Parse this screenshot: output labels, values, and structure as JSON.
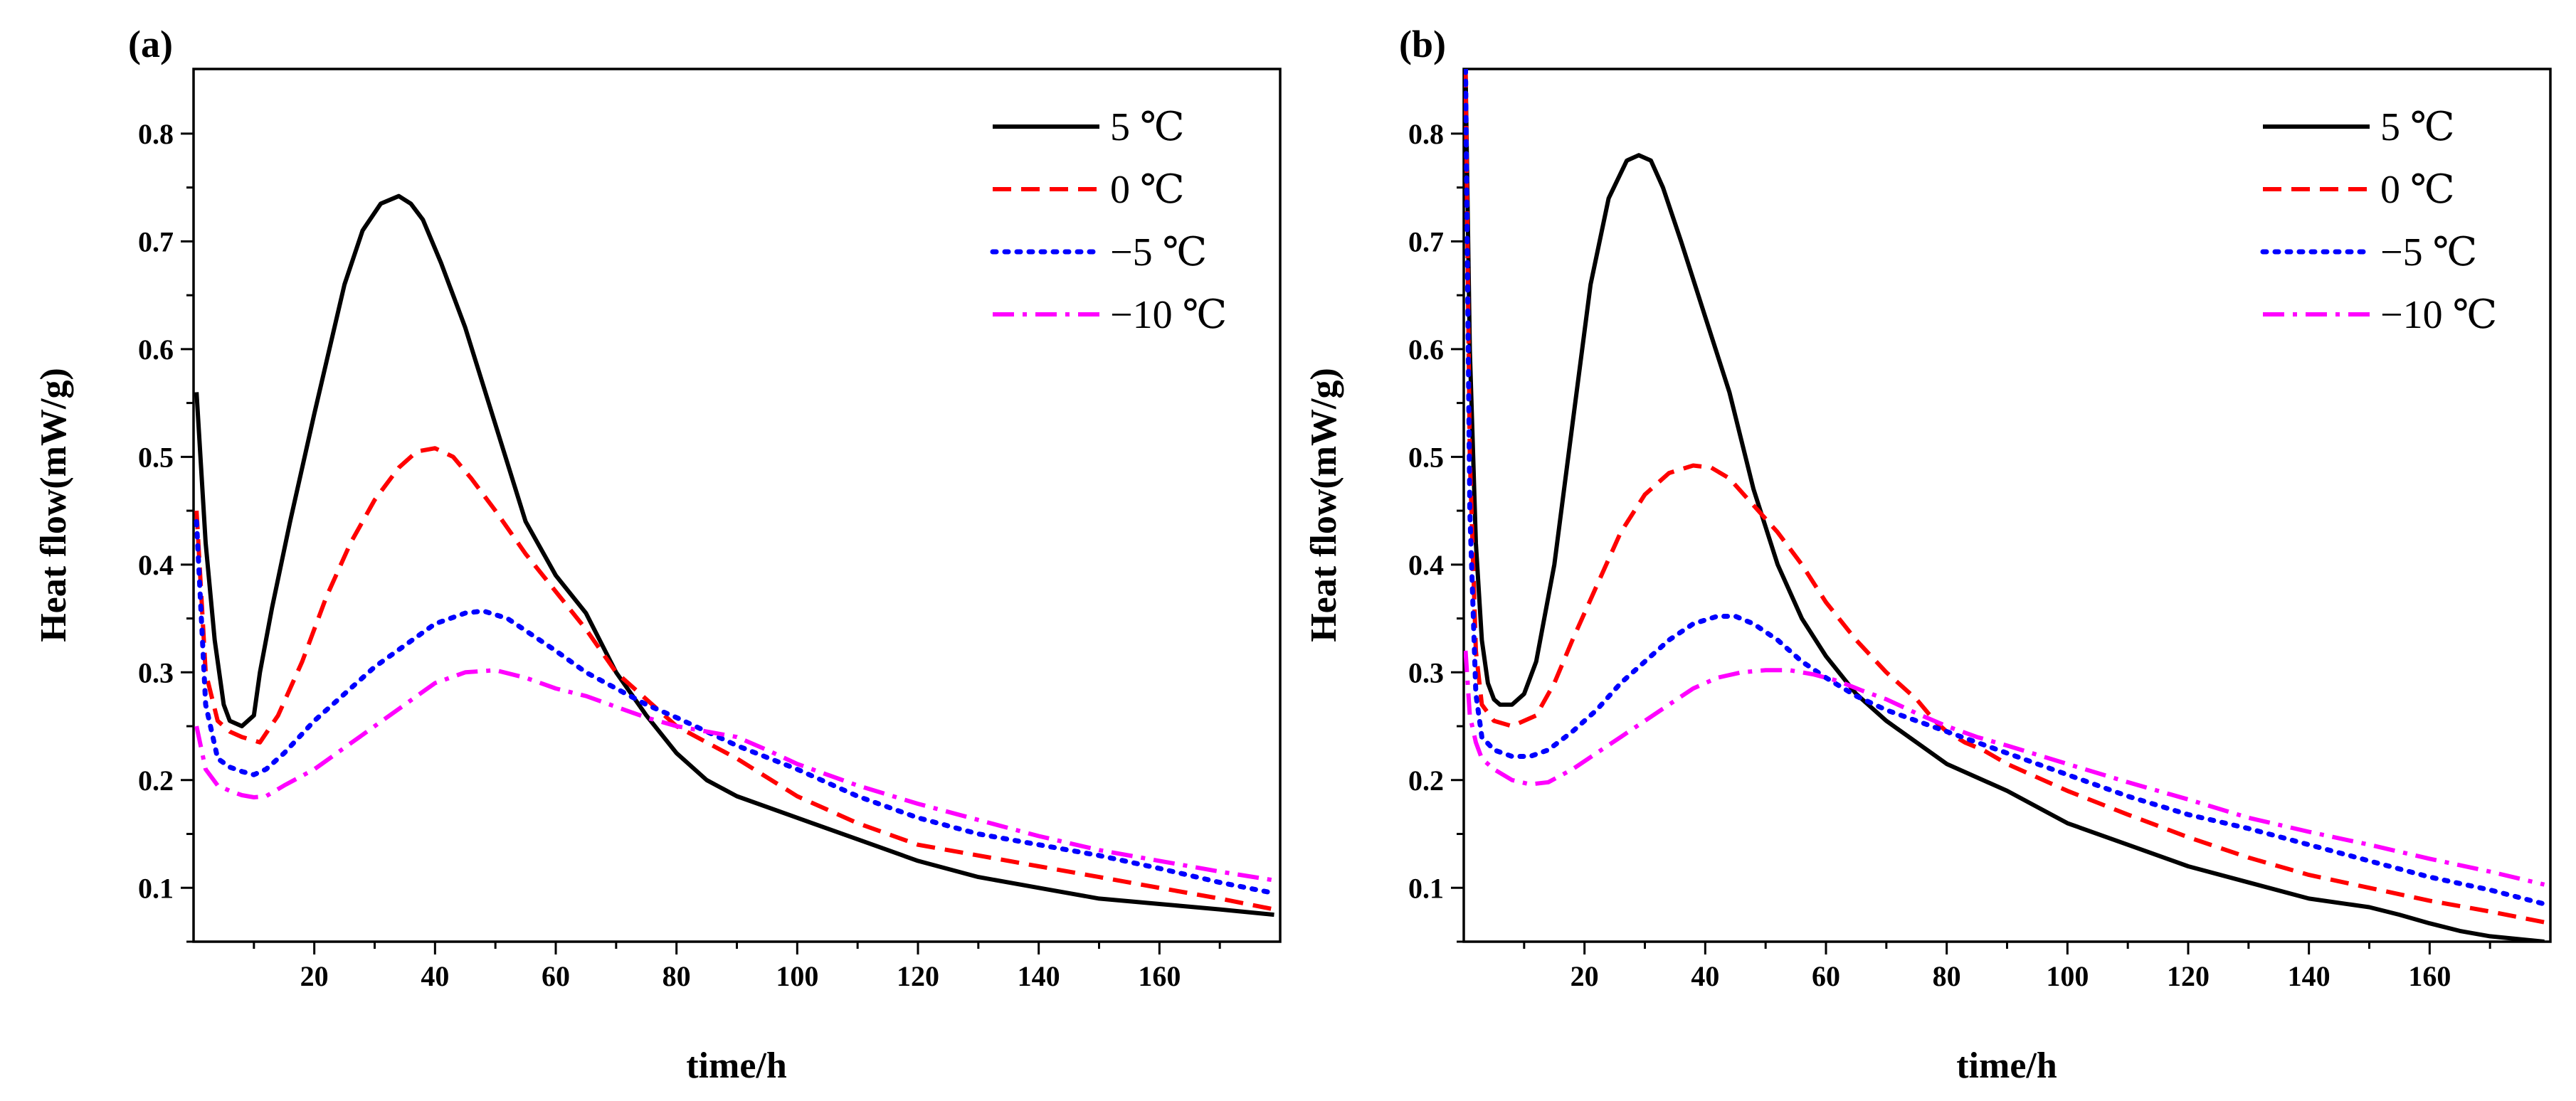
{
  "colors": {
    "5C": "#000000",
    "0C": "#ff0000",
    "m5C": "#0000ff",
    "m10C": "#ff00ff"
  },
  "chart_data": [
    {
      "panel_label": "(a)",
      "type": "line",
      "xlabel": "time/h",
      "ylabel": "Heat flow(mW/g)",
      "xlim": [
        0,
        180
      ],
      "ylim": [
        0.05,
        0.86
      ],
      "xticks": [
        "20",
        "40",
        "60",
        "80",
        "100",
        "120",
        "140",
        "160"
      ],
      "yticks": [
        "0.1",
        "0.2",
        "0.3",
        "0.4",
        "0.5",
        "0.6",
        "0.7",
        "0.8"
      ],
      "legend": [
        "5 ℃",
        "0 ℃",
        "−5 ℃",
        "−10 ℃"
      ],
      "series": [
        {
          "name": "5 ℃",
          "style": "solid",
          "color_key": "5C",
          "x": [
            0.5,
            2,
            3.5,
            5,
            6,
            8,
            10,
            11,
            13,
            16,
            20,
            25,
            28,
            31,
            34,
            36,
            38,
            41,
            45,
            50,
            55,
            60,
            65,
            70,
            75,
            80,
            85,
            90,
            100,
            110,
            120,
            130,
            140,
            150,
            160,
            170,
            179
          ],
          "y": [
            0.56,
            0.42,
            0.33,
            0.27,
            0.255,
            0.25,
            0.26,
            0.3,
            0.36,
            0.44,
            0.54,
            0.66,
            0.71,
            0.735,
            0.742,
            0.735,
            0.72,
            0.68,
            0.62,
            0.53,
            0.44,
            0.39,
            0.355,
            0.3,
            0.26,
            0.225,
            0.2,
            0.185,
            0.165,
            0.145,
            0.125,
            0.11,
            0.1,
            0.09,
            0.085,
            0.08,
            0.075
          ]
        },
        {
          "name": "0 ℃",
          "style": "dashed",
          "color_key": "0C",
          "x": [
            0.5,
            2,
            4,
            6,
            8,
            11,
            14,
            18,
            22,
            26,
            30,
            34,
            37,
            40,
            43,
            46,
            50,
            55,
            60,
            65,
            70,
            75,
            80,
            85,
            90,
            100,
            110,
            120,
            130,
            140,
            150,
            160,
            170,
            179
          ],
          "y": [
            0.45,
            0.3,
            0.255,
            0.245,
            0.24,
            0.235,
            0.26,
            0.31,
            0.37,
            0.42,
            0.46,
            0.49,
            0.505,
            0.508,
            0.5,
            0.48,
            0.45,
            0.41,
            0.375,
            0.34,
            0.3,
            0.275,
            0.25,
            0.235,
            0.22,
            0.185,
            0.16,
            0.14,
            0.13,
            0.12,
            0.11,
            0.1,
            0.09,
            0.08
          ]
        },
        {
          "name": "−5 ℃",
          "style": "dotted",
          "color_key": "m5C",
          "x": [
            0.5,
            2,
            4,
            6,
            8,
            10,
            12,
            15,
            20,
            25,
            30,
            35,
            40,
            45,
            48,
            52,
            56,
            60,
            65,
            70,
            75,
            80,
            85,
            90,
            100,
            110,
            120,
            130,
            140,
            150,
            160,
            170,
            179
          ],
          "y": [
            0.44,
            0.27,
            0.22,
            0.212,
            0.208,
            0.205,
            0.21,
            0.225,
            0.255,
            0.28,
            0.305,
            0.325,
            0.345,
            0.355,
            0.357,
            0.35,
            0.335,
            0.32,
            0.3,
            0.285,
            0.27,
            0.258,
            0.245,
            0.232,
            0.21,
            0.185,
            0.165,
            0.15,
            0.14,
            0.13,
            0.118,
            0.105,
            0.095
          ]
        },
        {
          "name": "−10 ℃",
          "style": "dashdot",
          "color_key": "m10C",
          "x": [
            0.5,
            2,
            4,
            6,
            8,
            10,
            12,
            15,
            20,
            25,
            30,
            35,
            40,
            45,
            50,
            55,
            60,
            65,
            70,
            75,
            80,
            85,
            90,
            95,
            100,
            110,
            120,
            130,
            140,
            150,
            160,
            170,
            179
          ],
          "y": [
            0.25,
            0.21,
            0.195,
            0.19,
            0.186,
            0.184,
            0.185,
            0.195,
            0.21,
            0.23,
            0.25,
            0.27,
            0.29,
            0.3,
            0.302,
            0.295,
            0.285,
            0.278,
            0.268,
            0.258,
            0.25,
            0.245,
            0.24,
            0.228,
            0.215,
            0.195,
            0.178,
            0.163,
            0.148,
            0.135,
            0.125,
            0.115,
            0.107
          ]
        }
      ]
    },
    {
      "panel_label": "(b)",
      "type": "line",
      "xlabel": "time/h",
      "ylabel": "Heat flow(mW/g)",
      "xlim": [
        0,
        180
      ],
      "ylim": [
        0.05,
        0.86
      ],
      "xticks": [
        "20",
        "40",
        "60",
        "80",
        "100",
        "120",
        "140",
        "160"
      ],
      "yticks": [
        "0.1",
        "0.2",
        "0.3",
        "0.4",
        "0.5",
        "0.6",
        "0.7",
        "0.8"
      ],
      "legend": [
        "5 ℃",
        "0 ℃",
        "−5 ℃",
        "−10 ℃"
      ],
      "series": [
        {
          "name": "5 ℃",
          "style": "solid",
          "color_key": "5C",
          "x": [
            0.3,
            1,
            2,
            3,
            4,
            5,
            6,
            8,
            10,
            12,
            15,
            18,
            21,
            24,
            27,
            29,
            31,
            33,
            36,
            40,
            44,
            48,
            52,
            56,
            60,
            65,
            70,
            75,
            80,
            90,
            100,
            110,
            120,
            130,
            140,
            150,
            155,
            160,
            165,
            170,
            179
          ],
          "y": [
            0.86,
            0.6,
            0.42,
            0.33,
            0.29,
            0.275,
            0.27,
            0.27,
            0.28,
            0.31,
            0.4,
            0.53,
            0.66,
            0.74,
            0.775,
            0.78,
            0.775,
            0.75,
            0.7,
            0.63,
            0.56,
            0.47,
            0.4,
            0.35,
            0.315,
            0.28,
            0.255,
            0.235,
            0.215,
            0.19,
            0.16,
            0.14,
            0.12,
            0.105,
            0.09,
            0.082,
            0.075,
            0.067,
            0.06,
            0.055,
            0.05
          ]
        },
        {
          "name": "0 ℃",
          "style": "dashed",
          "color_key": "0C",
          "x": [
            0.3,
            1,
            2,
            3,
            5,
            8,
            12,
            15,
            18,
            22,
            26,
            30,
            34,
            38,
            41,
            44,
            48,
            52,
            56,
            60,
            65,
            70,
            75,
            78,
            80,
            83,
            86,
            90,
            100,
            110,
            120,
            130,
            140,
            150,
            160,
            170,
            179
          ],
          "y": [
            0.86,
            0.5,
            0.32,
            0.27,
            0.255,
            0.25,
            0.26,
            0.29,
            0.33,
            0.38,
            0.43,
            0.465,
            0.485,
            0.492,
            0.49,
            0.48,
            0.455,
            0.43,
            0.4,
            0.365,
            0.33,
            0.3,
            0.275,
            0.255,
            0.245,
            0.235,
            0.228,
            0.215,
            0.19,
            0.168,
            0.147,
            0.128,
            0.112,
            0.1,
            0.088,
            0.078,
            0.068
          ]
        },
        {
          "name": "−5 ℃",
          "style": "dotted",
          "color_key": "m5C",
          "x": [
            0.3,
            1,
            2,
            3,
            5,
            8,
            11,
            14,
            18,
            22,
            26,
            30,
            34,
            38,
            42,
            45,
            48,
            52,
            56,
            60,
            65,
            70,
            75,
            80,
            90,
            100,
            110,
            120,
            130,
            140,
            150,
            160,
            170,
            179
          ],
          "y": [
            0.86,
            0.45,
            0.28,
            0.24,
            0.228,
            0.222,
            0.222,
            0.228,
            0.245,
            0.265,
            0.29,
            0.31,
            0.33,
            0.345,
            0.352,
            0.352,
            0.345,
            0.33,
            0.31,
            0.295,
            0.278,
            0.265,
            0.255,
            0.245,
            0.225,
            0.205,
            0.185,
            0.168,
            0.155,
            0.14,
            0.125,
            0.11,
            0.098,
            0.085
          ]
        },
        {
          "name": "−10 ℃",
          "style": "dashdot",
          "color_key": "m10C",
          "x": [
            0.3,
            1,
            2,
            3,
            5,
            8,
            11,
            14,
            18,
            22,
            26,
            30,
            34,
            38,
            42,
            46,
            50,
            54,
            58,
            62,
            66,
            70,
            75,
            80,
            85,
            90,
            100,
            110,
            120,
            130,
            140,
            150,
            160,
            170,
            179
          ],
          "y": [
            0.32,
            0.26,
            0.235,
            0.22,
            0.21,
            0.2,
            0.196,
            0.198,
            0.21,
            0.225,
            0.24,
            0.255,
            0.27,
            0.285,
            0.295,
            0.3,
            0.302,
            0.302,
            0.298,
            0.292,
            0.283,
            0.275,
            0.262,
            0.25,
            0.24,
            0.232,
            0.215,
            0.198,
            0.182,
            0.165,
            0.152,
            0.14,
            0.127,
            0.115,
            0.103
          ]
        }
      ]
    }
  ]
}
